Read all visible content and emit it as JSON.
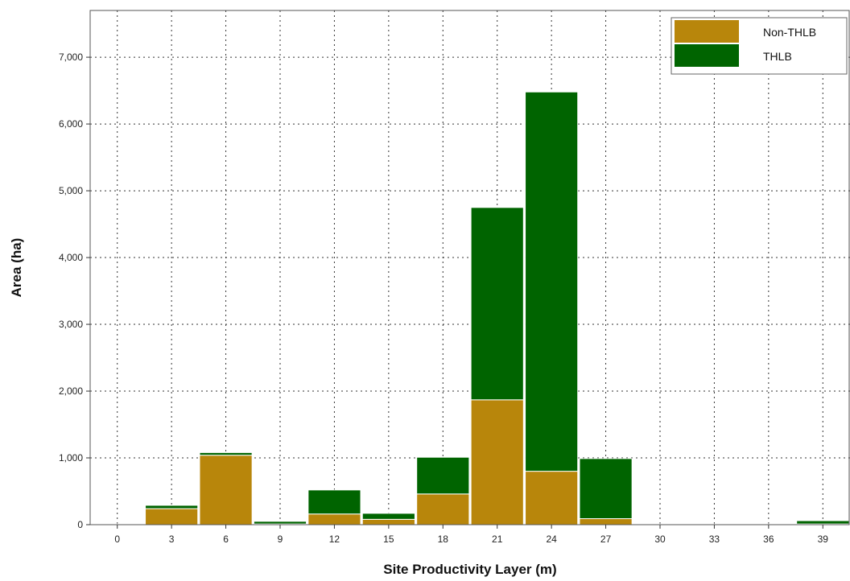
{
  "chart_data": {
    "type": "bar",
    "stacked": true,
    "xlabel": "Site Productivity Layer (m)",
    "ylabel": "Area (ha)",
    "ylim": [
      0,
      7700
    ],
    "xlim": [
      -1.5,
      40.5
    ],
    "bar_width": 2.9,
    "x": [
      0,
      3,
      6,
      9,
      12,
      15,
      18,
      21,
      24,
      27,
      30,
      33,
      36,
      39
    ],
    "x_ticks": [
      "0",
      "3",
      "6",
      "9",
      "12",
      "15",
      "18",
      "21",
      "24",
      "27",
      "30",
      "33",
      "36",
      "39"
    ],
    "y_ticks": [
      0,
      1000,
      2000,
      3000,
      4000,
      5000,
      6000,
      7000
    ],
    "y_tick_labels": [
      "0",
      "1,000",
      "2,000",
      "3,000",
      "4,000",
      "5,000",
      "6,000",
      "7,000"
    ],
    "grid": true,
    "legend_position": "top-right",
    "series": [
      {
        "name": "Non-THLB",
        "color": "#b8860b",
        "values": [
          10,
          240,
          1040,
          10,
          160,
          80,
          460,
          1870,
          800,
          90,
          10,
          10,
          10,
          10
        ]
      },
      {
        "name": "THLB",
        "color": "#006400",
        "values": [
          0,
          50,
          40,
          40,
          360,
          90,
          550,
          2880,
          5680,
          900,
          0,
          0,
          0,
          50
        ]
      }
    ]
  }
}
